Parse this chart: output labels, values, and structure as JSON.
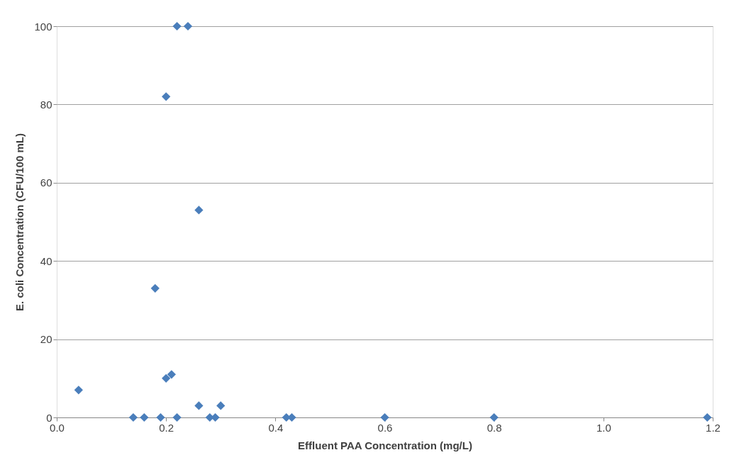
{
  "chart_data": {
    "type": "scatter",
    "xlabel": "Effluent PAA Concentration (mg/L)",
    "ylabel": "E. coli Concentration (CFU/100 mL)",
    "x": [
      0.04,
      0.14,
      0.16,
      0.18,
      0.19,
      0.2,
      0.2,
      0.21,
      0.22,
      0.22,
      0.24,
      0.26,
      0.26,
      0.28,
      0.29,
      0.3,
      0.42,
      0.43,
      0.6,
      0.8,
      1.19
    ],
    "series": [
      {
        "color": "#4a7ebb",
        "values": [
          7,
          0,
          0,
          33,
          0,
          10,
          82,
          11,
          0,
          100,
          100,
          53,
          3,
          0,
          0,
          3,
          0,
          0,
          0,
          0,
          0
        ]
      }
    ],
    "xlim": [
      0,
      1.2
    ],
    "xticks": [
      {
        "value": 0,
        "label": "0.0"
      },
      {
        "value": 0.2,
        "label": "0.2"
      },
      {
        "value": 0.4,
        "label": "0.4"
      },
      {
        "value": 0.6,
        "label": "0.6"
      },
      {
        "value": 0.8,
        "label": "0.8"
      },
      {
        "value": 1,
        "label": "1.0"
      },
      {
        "value": 1.2,
        "label": "1.2"
      }
    ],
    "ylim": [
      0,
      100
    ],
    "yticks": [
      0,
      20,
      40,
      60,
      80,
      100
    ],
    "grid": "y",
    "marker": "diamond"
  }
}
